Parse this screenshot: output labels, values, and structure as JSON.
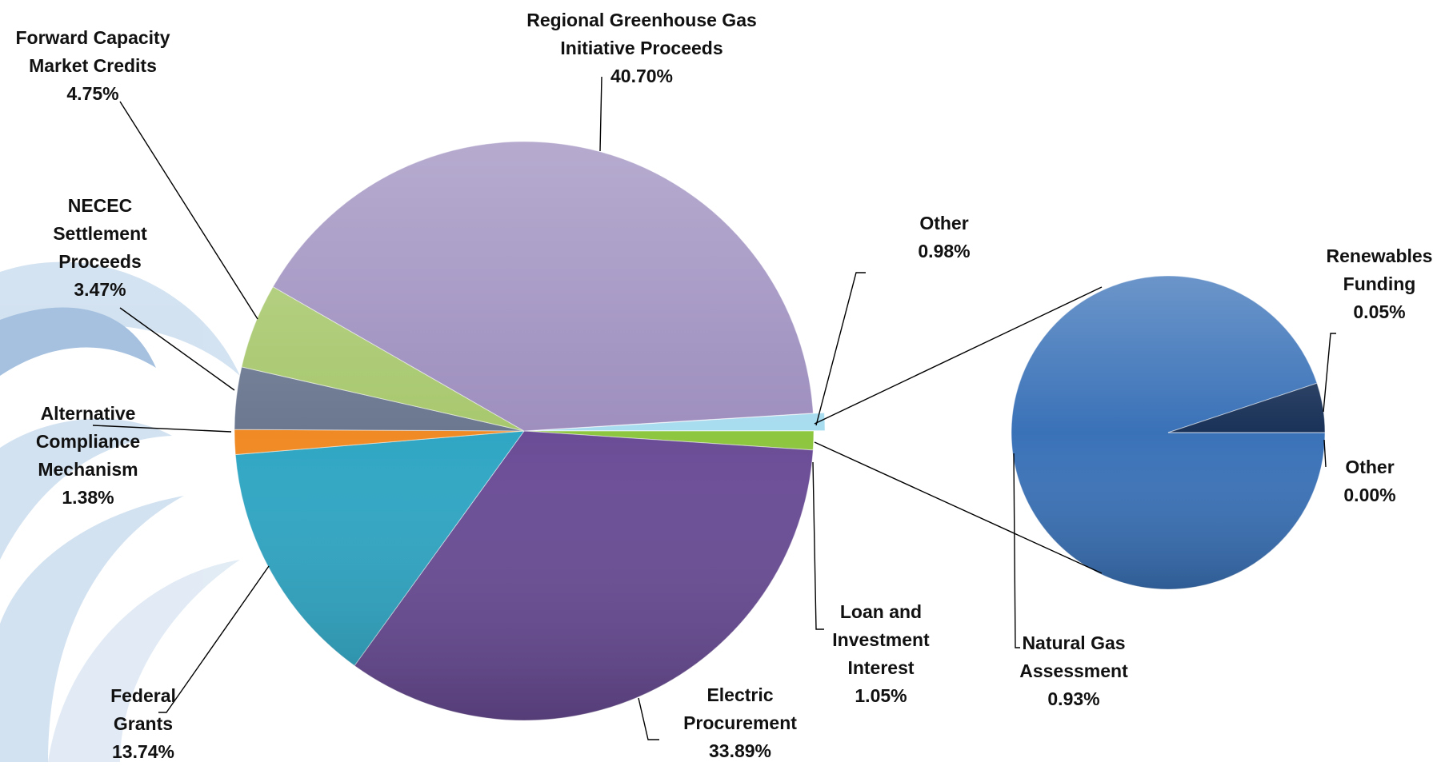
{
  "chart_data": [
    {
      "type": "pie",
      "categories": [
        "Loan and Investment Interest",
        "Electric Procurement",
        "Federal Grants",
        "Alternative Compliance Mechanism",
        "NECEC Settlement Proceeds",
        "Forward Capacity Market Credits",
        "Regional Greenhouse Gas Initiative Proceeds",
        "Other"
      ],
      "values": [
        1.05,
        33.89,
        13.74,
        1.38,
        3.47,
        4.75,
        40.7,
        0.98
      ],
      "value_labels": [
        "1.05%",
        "33.89%",
        "13.74%",
        "1.38%",
        "3.47%",
        "4.75%",
        "40.70%",
        "0.98%"
      ],
      "colors": [
        "#8dc63f",
        "#6a4c96",
        "#2fa6c4",
        "#f08a24",
        "#6b7890",
        "#a8c86e",
        "#9e8fbf",
        "#a8dcef"
      ]
    },
    {
      "type": "pie",
      "categories": [
        "Natural Gas Assessment",
        "Renewables Funding",
        "Other"
      ],
      "values": [
        0.93,
        0.05,
        0.0
      ],
      "value_labels": [
        "0.93%",
        "0.05%",
        "0.00%"
      ],
      "colors": [
        "#3a72b8",
        "#1a3258",
        "#2f5f9a"
      ]
    }
  ]
}
